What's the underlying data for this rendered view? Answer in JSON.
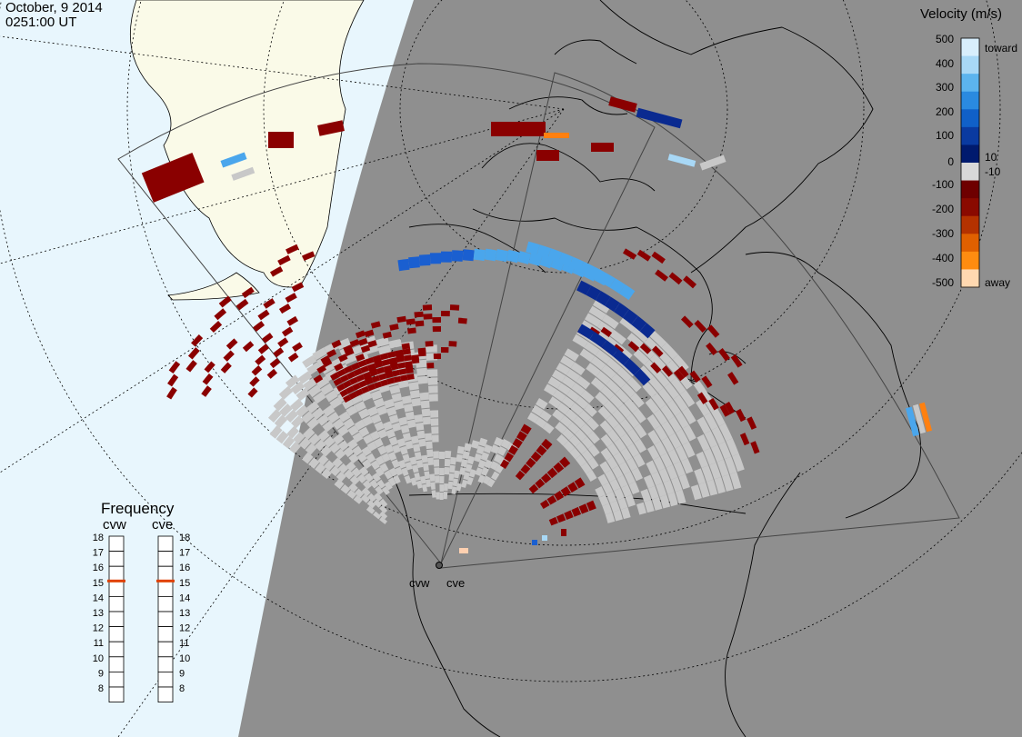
{
  "header": {
    "date": "October, 9 2014",
    "time": "0251:00 UT"
  },
  "colorbar": {
    "title": "Velocity (m/s)",
    "ticks": [
      "500",
      "400",
      "300",
      "200",
      "100",
      "10",
      "0",
      "-10",
      "-100",
      "-200",
      "-300",
      "-400",
      "-500"
    ],
    "toward_label": "toward",
    "away_label": "away",
    "colors": [
      "#d8eefc",
      "#a8d8f6",
      "#5cb4ee",
      "#2a8ae0",
      "#1060c8",
      "#0a3aa0",
      "#001a6e",
      "#d8d8d8",
      "#6e0000",
      "#8a0a00",
      "#b43200",
      "#e06000",
      "#ff8c10",
      "#ffd8b0"
    ]
  },
  "frequency": {
    "title": "Frequency",
    "radars": [
      {
        "label": "cvw",
        "selected": 15
      },
      {
        "label": "cve",
        "selected": 15
      }
    ],
    "scale": [
      "18",
      "17",
      "16",
      "15",
      "14",
      "13",
      "12",
      "11",
      "10",
      "9",
      "8"
    ],
    "marker_color": "#e04000"
  },
  "sites": [
    {
      "label": "cvw"
    },
    {
      "label": "cve"
    }
  ],
  "colors": {
    "night": "#8f8f8f",
    "day_ocean": "#e8f6fd",
    "day_land": "#fafae8",
    "ground_scatter": "#c8c8c8"
  }
}
